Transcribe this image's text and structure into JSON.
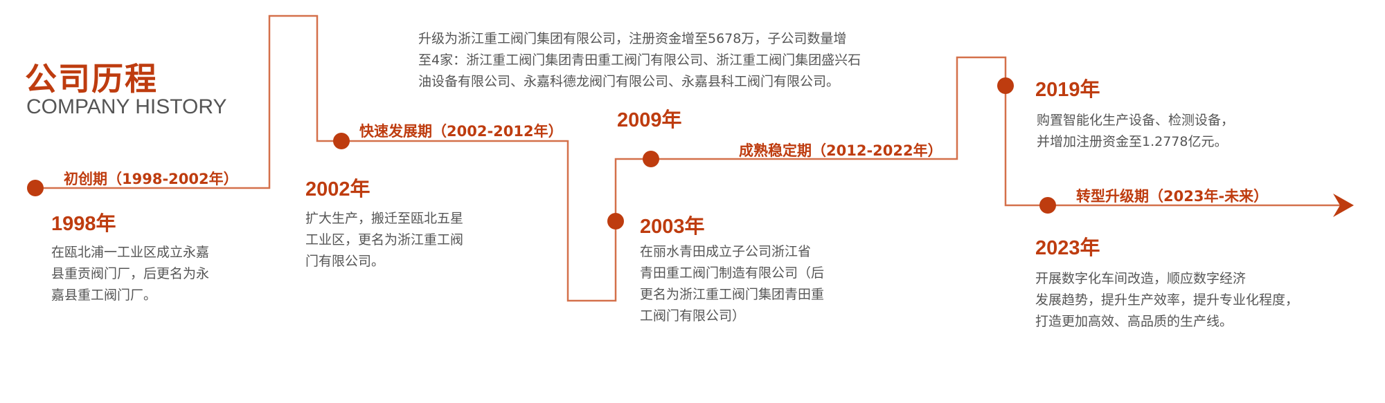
{
  "header": {
    "title": "公司历程",
    "subtitle": "COMPANY HISTORY"
  },
  "colors": {
    "accent": "#be3c0f",
    "line": "#d4704a",
    "text": "#555555"
  },
  "periods": [
    {
      "label": "初创期（1998-2002年）"
    },
    {
      "label": "快速发展期（2002-2012年）"
    },
    {
      "label": "成熟稳定期（2012-2022年）"
    },
    {
      "label": "转型升级期（2023年-未来）"
    }
  ],
  "milestones": [
    {
      "year": "1998年",
      "lines": [
        "在瓯北浦一工业区成立永嘉",
        "县重贡阀门厂，后更名为永",
        "嘉县重工阀门厂。"
      ]
    },
    {
      "year": "2002年",
      "lines": [
        "扩大生产，搬迁至瓯北五星",
        "工业区，更名为浙江重工阀",
        "门有限公司。"
      ]
    },
    {
      "year": "2009年",
      "lines": [
        "升级为浙江重工阀门集团有限公司，注册资金增至5678万，子公司数量增",
        "至4家：浙江重工阀门集团青田重工阀门有限公司、浙江重工阀门集团盛兴石",
        "油设备有限公司、永嘉科德龙阀门有限公司、永嘉县科工阀门有限公司。"
      ]
    },
    {
      "year": "2003年",
      "lines": [
        "在丽水青田成立子公司浙江省",
        "青田重工阀门制造有限公司（后",
        "更名为浙江重工阀门集团青田重",
        "工阀门有限公司）"
      ]
    },
    {
      "year": "2019年",
      "lines": [
        "购置智能化生产设备、检测设备，",
        "并增加注册资金至1.2778亿元。"
      ]
    },
    {
      "year": "2023年",
      "lines": [
        "开展数字化车间改造，顺应数字经济",
        "发展趋势，提升生产效率，提升专业化程度，",
        "打造更加高效、高品质的生产线。"
      ]
    }
  ]
}
